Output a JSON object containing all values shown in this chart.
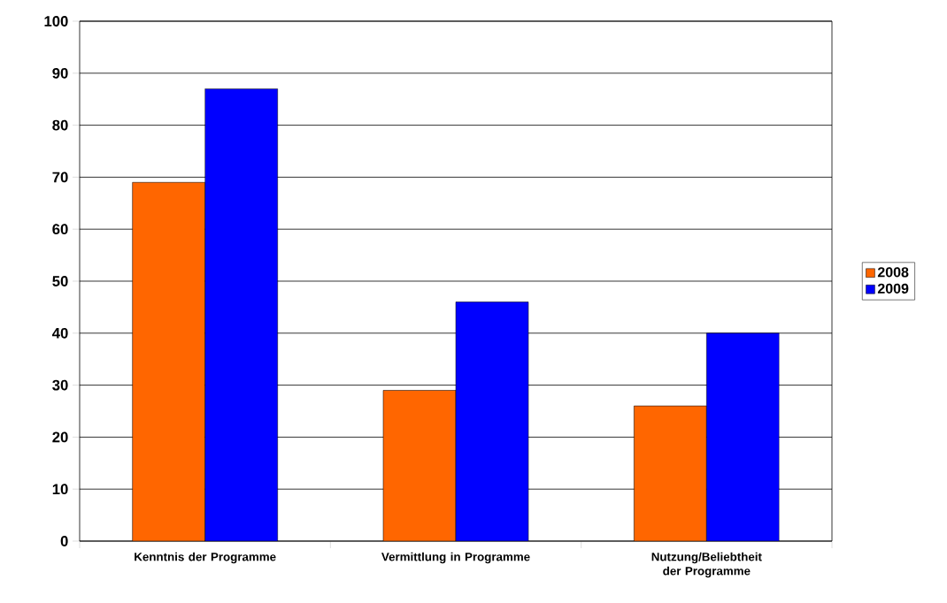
{
  "chart_data": {
    "type": "bar",
    "categories": [
      "Kenntnis der Programme",
      "Vermittlung in Programme",
      "Nutzung/Beliebtheit der Programme"
    ],
    "series": [
      {
        "name": "2008",
        "color": "#ff6600",
        "values": [
          69,
          29,
          26
        ]
      },
      {
        "name": "2009",
        "color": "#0000ff",
        "values": [
          87,
          46,
          40
        ]
      }
    ],
    "ylim": [
      0,
      100
    ],
    "yticks": [
      0,
      10,
      20,
      30,
      40,
      50,
      60,
      70,
      80,
      90,
      100
    ],
    "grid": "y",
    "legend": "right"
  }
}
